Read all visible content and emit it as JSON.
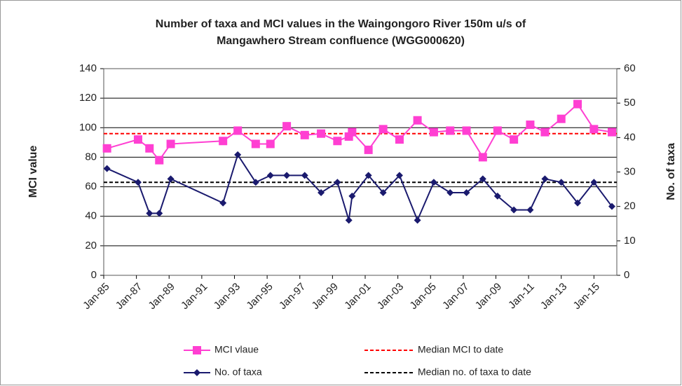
{
  "chart_data": {
    "type": "line",
    "title": [
      "Number of taxa and MCI values in the Waingongoro River 150m  u/s of",
      "Mangawhero Stream confluence  (WGG000620)"
    ],
    "y_label": "MCI value",
    "y2_label": "No. of taxa",
    "x": [
      1985.2,
      1987.1,
      1987.8,
      1988.4,
      1989.1,
      1992.3,
      1993.2,
      1994.3,
      1995.2,
      1996.2,
      1997.3,
      1998.3,
      1999.3,
      2000.0,
      2000.2,
      2001.2,
      2002.1,
      2003.1,
      2004.2,
      2005.2,
      2006.2,
      2007.2,
      2008.2,
      2009.1,
      2010.1,
      2011.1,
      2012.0,
      2013.0,
      2014.0,
      2015.0,
      2016.1
    ],
    "series": [
      {
        "name": "MCI vlaue",
        "color": "#ff3fd2",
        "marker": "square",
        "axis": "y",
        "values": [
          86,
          92,
          86,
          78,
          89,
          91,
          98,
          89,
          89,
          101,
          95,
          96,
          91,
          94,
          97,
          85,
          99,
          92,
          105,
          97,
          98,
          98,
          80,
          98,
          92,
          102,
          97,
          106,
          116,
          99,
          97
        ]
      },
      {
        "name": "No. of taxa",
        "color": "#1a1a6e",
        "marker": "diamond",
        "axis": "y2",
        "values": [
          31,
          27,
          18,
          18,
          28,
          21,
          35,
          27,
          29,
          29,
          29,
          24,
          27,
          16,
          23,
          29,
          24,
          29,
          16,
          27,
          24,
          24,
          28,
          23,
          19,
          19,
          28,
          27,
          21,
          27,
          20
        ]
      }
    ],
    "reference_lines": [
      {
        "name": "Median MCI to date",
        "value": 96,
        "axis": "y",
        "color": "#ff0000"
      },
      {
        "name": "Median no. of taxa to date",
        "value": 27,
        "axis": "y2",
        "color": "#000000"
      }
    ],
    "xlim": [
      1985,
      2016.4
    ],
    "xticks": [
      {
        "value": 1985,
        "label": "Jan-85"
      },
      {
        "value": 1987,
        "label": "Jan-87"
      },
      {
        "value": 1989,
        "label": "Jan-89"
      },
      {
        "value": 1991,
        "label": "Jan-91"
      },
      {
        "value": 1993,
        "label": "Jan-93"
      },
      {
        "value": 1995,
        "label": "Jan-95"
      },
      {
        "value": 1997,
        "label": "Jan-97"
      },
      {
        "value": 1999,
        "label": "Jan-99"
      },
      {
        "value": 2001,
        "label": "Jan-01"
      },
      {
        "value": 2003,
        "label": "Jan-03"
      },
      {
        "value": 2005,
        "label": "Jan-05"
      },
      {
        "value": 2007,
        "label": "Jan-07"
      },
      {
        "value": 2009,
        "label": "Jan-09"
      },
      {
        "value": 2011,
        "label": "Jan-11"
      },
      {
        "value": 2013,
        "label": "Jan-13"
      },
      {
        "value": 2015,
        "label": "Jan-15"
      }
    ],
    "ylim": [
      0,
      140
    ],
    "yticks": [
      0,
      20,
      40,
      60,
      80,
      100,
      120,
      140
    ],
    "y2lim": [
      0,
      60
    ],
    "y2ticks": [
      0,
      10,
      20,
      30,
      40,
      50,
      60
    ],
    "grid": true
  }
}
